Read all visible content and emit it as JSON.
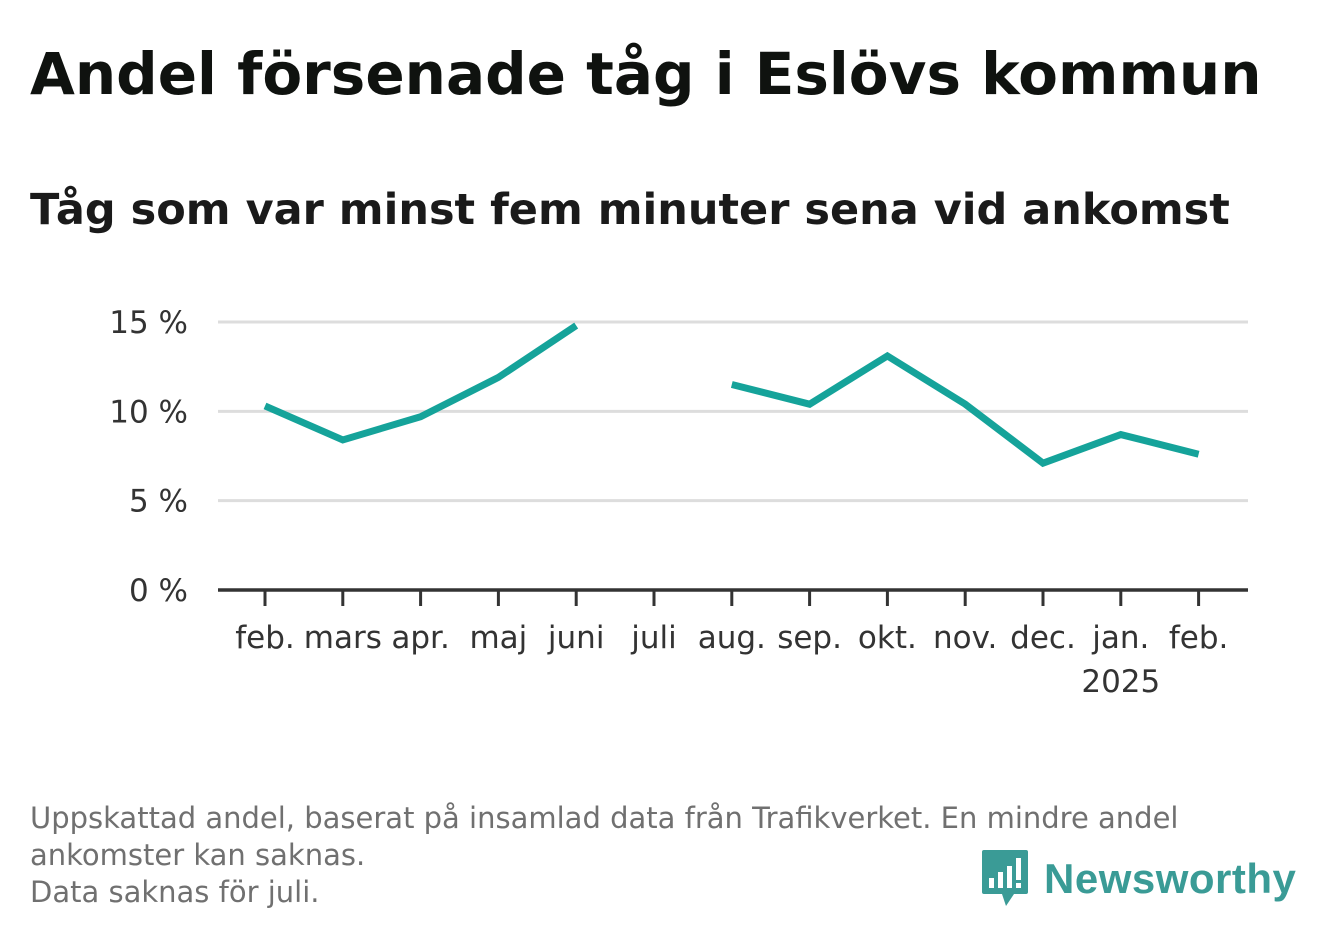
{
  "title": "Andel försenade tåg i Eslövs kommun",
  "subtitle": "Tåg som var minst fem minuter sena vid ankomst",
  "footnote": {
    "line1": "Uppskattad andel, baserat på insamlad data från Trafikverket. En mindre andel",
    "line2": "ankomster kan saknas.",
    "line3": "Data saknas för juli."
  },
  "logo": {
    "text": "Newsworthy",
    "icon": "newsworthy-bar-chart-icon"
  },
  "colors": {
    "line": "#15a39a",
    "grid": "#dddddd",
    "axis": "#333333",
    "logo": "#3a9b96"
  },
  "chart_data": {
    "type": "line",
    "title": "Andel försenade tåg i Eslövs kommun",
    "subtitle": "Tåg som var minst fem minuter sena vid ankomst",
    "xlabel": "",
    "ylabel": "",
    "categories": [
      "feb.",
      "mars",
      "apr.",
      "maj",
      "juni",
      "juli",
      "aug.",
      "sep.",
      "okt.",
      "nov.",
      "dec.",
      "jan.",
      "feb."
    ],
    "year_labels": [
      "",
      "",
      "",
      "",
      "",
      "",
      "",
      "",
      "",
      "",
      "",
      "2025",
      ""
    ],
    "series": [
      {
        "values": [
          10.3,
          8.4,
          9.7,
          11.9,
          14.8,
          null,
          11.5,
          10.4,
          13.1,
          10.4,
          7.1,
          8.7,
          7.6
        ]
      }
    ],
    "ylim": [
      0,
      15
    ],
    "yticks": [
      0,
      5,
      10,
      15
    ],
    "ytick_labels": [
      "0 %",
      "5 %",
      "10 %",
      "15 %"
    ],
    "grid": true,
    "legend": "none"
  }
}
